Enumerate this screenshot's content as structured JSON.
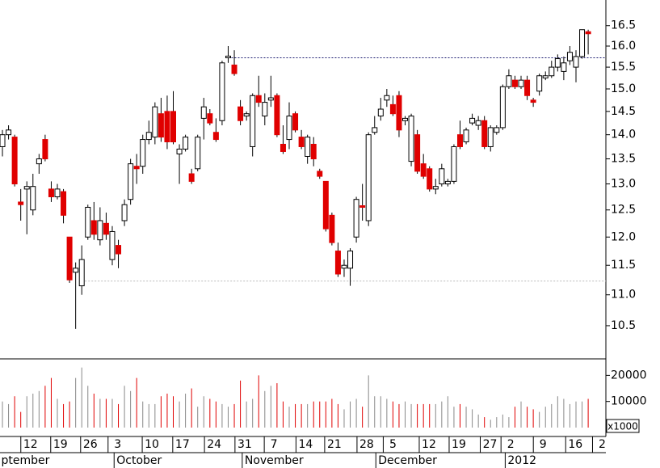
{
  "chart_data": {
    "type": "candlestick",
    "log_scale": true,
    "xlim": [
      -0.4,
      98.9
    ],
    "ylim": [
      10.0,
      17.15
    ],
    "yticks": [
      {
        "value": 10.5,
        "label": "10.5"
      },
      {
        "value": 11,
        "label": "11.0"
      },
      {
        "value": 11.5,
        "label": "11.5"
      },
      {
        "value": 12,
        "label": "12.0"
      },
      {
        "value": 12.5,
        "label": "12.5"
      },
      {
        "value": 13,
        "label": "13.0"
      },
      {
        "value": 13.5,
        "label": "13.5"
      },
      {
        "value": 14,
        "label": "14.0"
      },
      {
        "value": 14.5,
        "label": "14.5"
      },
      {
        "value": 15,
        "label": "15.0"
      },
      {
        "value": 15.5,
        "label": "15.5"
      },
      {
        "value": 16,
        "label": "16.0"
      },
      {
        "value": 16.5,
        "label": "16.5"
      }
    ],
    "up_color": "#ffffff",
    "down_color": "#e00000",
    "candles": [
      {
        "open": 13.75,
        "high": 14.1,
        "low": 13.55,
        "close": 14.0
      },
      {
        "open": 14.0,
        "high": 14.2,
        "low": 13.9,
        "close": 14.1
      },
      {
        "open": 13.95,
        "high": 14.0,
        "low": 12.95,
        "close": 13.0
      },
      {
        "open": 12.65,
        "high": 12.9,
        "low": 12.3,
        "close": 12.6
      },
      {
        "open": 12.9,
        "high": 13.05,
        "low": 12.05,
        "close": 12.95
      },
      {
        "open": 12.5,
        "high": 13.2,
        "low": 12.4,
        "close": 12.95
      },
      {
        "open": 13.4,
        "high": 13.6,
        "low": 13.2,
        "close": 13.5
      },
      {
        "open": 13.9,
        "high": 14.0,
        "low": 13.45,
        "close": 13.5
      },
      {
        "open": 12.9,
        "high": 13.05,
        "low": 12.65,
        "close": 12.75
      },
      {
        "open": 12.75,
        "high": 13.0,
        "low": 12.7,
        "close": 12.9
      },
      {
        "open": 12.85,
        "high": 12.9,
        "low": 12.25,
        "close": 12.4
      },
      {
        "open": 12.0,
        "high": 12.0,
        "low": 11.2,
        "close": 11.25
      },
      {
        "open": 11.38,
        "high": 11.55,
        "low": 10.45,
        "close": 11.45
      },
      {
        "open": 11.15,
        "high": 11.85,
        "low": 11.0,
        "close": 11.6
      },
      {
        "open": 12.0,
        "high": 12.6,
        "low": 11.95,
        "close": 12.55
      },
      {
        "open": 12.3,
        "high": 12.65,
        "low": 11.95,
        "close": 12.05
      },
      {
        "open": 11.95,
        "high": 12.55,
        "low": 11.85,
        "close": 12.3
      },
      {
        "open": 12.25,
        "high": 12.45,
        "low": 11.95,
        "close": 12.05
      },
      {
        "open": 11.6,
        "high": 12.2,
        "low": 11.5,
        "close": 12.1
      },
      {
        "open": 11.85,
        "high": 11.95,
        "low": 11.45,
        "close": 11.7
      },
      {
        "open": 12.3,
        "high": 12.7,
        "low": 12.2,
        "close": 12.6
      },
      {
        "open": 12.7,
        "high": 13.5,
        "low": 12.6,
        "close": 13.4
      },
      {
        "open": 13.35,
        "high": 13.6,
        "low": 13.0,
        "close": 13.3
      },
      {
        "open": 13.35,
        "high": 14.0,
        "low": 13.2,
        "close": 13.9
      },
      {
        "open": 13.9,
        "high": 14.3,
        "low": 13.8,
        "close": 14.05
      },
      {
        "open": 13.95,
        "high": 14.7,
        "low": 13.8,
        "close": 14.6
      },
      {
        "open": 14.45,
        "high": 14.8,
        "low": 13.85,
        "close": 13.95
      },
      {
        "open": 14.5,
        "high": 14.85,
        "low": 13.7,
        "close": 13.85
      },
      {
        "open": 14.5,
        "high": 14.95,
        "low": 13.8,
        "close": 13.85
      },
      {
        "open": 13.6,
        "high": 13.8,
        "low": 13.0,
        "close": 13.7
      },
      {
        "open": 13.7,
        "high": 14.0,
        "low": 13.65,
        "close": 13.95
      },
      {
        "open": 13.2,
        "high": 13.3,
        "low": 13.0,
        "close": 13.05
      },
      {
        "open": 13.3,
        "high": 14.0,
        "low": 13.25,
        "close": 13.95
      },
      {
        "open": 14.35,
        "high": 14.8,
        "low": 13.9,
        "close": 14.6
      },
      {
        "open": 14.45,
        "high": 14.55,
        "low": 14.2,
        "close": 14.25
      },
      {
        "open": 14.05,
        "high": 14.35,
        "low": 13.85,
        "close": 13.9
      },
      {
        "open": 14.3,
        "high": 15.65,
        "low": 14.2,
        "close": 15.6
      },
      {
        "open": 15.72,
        "high": 16.0,
        "low": 15.6,
        "close": 15.76
      },
      {
        "open": 15.55,
        "high": 15.9,
        "low": 15.3,
        "close": 15.35
      },
      {
        "open": 14.6,
        "high": 14.75,
        "low": 14.2,
        "close": 14.3
      },
      {
        "open": 14.4,
        "high": 14.5,
        "low": 14.3,
        "close": 14.45
      },
      {
        "open": 13.75,
        "high": 14.9,
        "low": 13.55,
        "close": 14.85
      },
      {
        "open": 14.85,
        "high": 15.3,
        "low": 14.6,
        "close": 14.7
      },
      {
        "open": 14.4,
        "high": 14.9,
        "low": 14.2,
        "close": 14.7
      },
      {
        "open": 14.75,
        "high": 15.3,
        "low": 14.6,
        "close": 14.8
      },
      {
        "open": 14.85,
        "high": 14.9,
        "low": 13.95,
        "close": 14.0
      },
      {
        "open": 13.8,
        "high": 14.2,
        "low": 13.6,
        "close": 13.65
      },
      {
        "open": 13.9,
        "high": 14.7,
        "low": 13.7,
        "close": 14.4
      },
      {
        "open": 14.45,
        "high": 14.5,
        "low": 14.05,
        "close": 14.1
      },
      {
        "open": 13.95,
        "high": 14.1,
        "low": 13.7,
        "close": 13.75
      },
      {
        "open": 13.55,
        "high": 14.0,
        "low": 13.4,
        "close": 13.95
      },
      {
        "open": 13.8,
        "high": 13.95,
        "low": 13.35,
        "close": 13.5
      },
      {
        "open": 13.25,
        "high": 13.3,
        "low": 13.1,
        "close": 13.15
      },
      {
        "open": 13.05,
        "high": 13.05,
        "low": 12.1,
        "close": 12.15
      },
      {
        "open": 12.4,
        "high": 12.45,
        "low": 11.85,
        "close": 11.9
      },
      {
        "open": 11.75,
        "high": 11.9,
        "low": 11.3,
        "close": 11.35
      },
      {
        "open": 11.45,
        "high": 11.6,
        "low": 11.3,
        "close": 11.5
      },
      {
        "open": 11.45,
        "high": 11.8,
        "low": 11.15,
        "close": 11.75
      },
      {
        "open": 12.0,
        "high": 12.75,
        "low": 11.9,
        "close": 12.7
      },
      {
        "open": 12.58,
        "high": 13.0,
        "low": 12.3,
        "close": 12.55
      },
      {
        "open": 12.3,
        "high": 14.05,
        "low": 12.2,
        "close": 14.0
      },
      {
        "open": 14.05,
        "high": 14.4,
        "low": 14.0,
        "close": 14.15
      },
      {
        "open": 14.4,
        "high": 14.8,
        "low": 14.3,
        "close": 14.55
      },
      {
        "open": 14.75,
        "high": 15.0,
        "low": 14.6,
        "close": 14.85
      },
      {
        "open": 14.65,
        "high": 14.85,
        "low": 14.4,
        "close": 14.45
      },
      {
        "open": 14.85,
        "high": 14.95,
        "low": 13.95,
        "close": 14.1
      },
      {
        "open": 14.3,
        "high": 14.4,
        "low": 14.2,
        "close": 14.35
      },
      {
        "open": 13.45,
        "high": 14.45,
        "low": 13.35,
        "close": 14.4
      },
      {
        "open": 14.0,
        "high": 14.1,
        "low": 13.2,
        "close": 13.25
      },
      {
        "open": 13.4,
        "high": 13.6,
        "low": 13.1,
        "close": 13.15
      },
      {
        "open": 13.3,
        "high": 13.35,
        "low": 12.85,
        "close": 12.9
      },
      {
        "open": 12.9,
        "high": 13.1,
        "low": 12.8,
        "close": 12.95
      },
      {
        "open": 13.0,
        "high": 13.4,
        "low": 12.95,
        "close": 13.3
      },
      {
        "open": 13.0,
        "high": 13.1,
        "low": 12.95,
        "close": 13.05
      },
      {
        "open": 13.05,
        "high": 13.8,
        "low": 13.0,
        "close": 13.75
      },
      {
        "open": 14.0,
        "high": 14.3,
        "low": 13.7,
        "close": 13.75
      },
      {
        "open": 13.85,
        "high": 14.15,
        "low": 13.8,
        "close": 14.1
      },
      {
        "open": 14.25,
        "high": 14.45,
        "low": 14.2,
        "close": 14.35
      },
      {
        "open": 14.2,
        "high": 14.4,
        "low": 14.1,
        "close": 14.3
      },
      {
        "open": 14.3,
        "high": 14.4,
        "low": 13.7,
        "close": 13.75
      },
      {
        "open": 13.75,
        "high": 14.2,
        "low": 13.65,
        "close": 14.15
      },
      {
        "open": 14.05,
        "high": 14.2,
        "low": 14.0,
        "close": 14.15
      },
      {
        "open": 14.15,
        "high": 15.1,
        "low": 14.1,
        "close": 15.05
      },
      {
        "open": 15.05,
        "high": 15.45,
        "low": 15.0,
        "close": 15.3
      },
      {
        "open": 15.2,
        "high": 15.3,
        "low": 15.0,
        "close": 15.05
      },
      {
        "open": 15.05,
        "high": 15.3,
        "low": 15.0,
        "close": 15.2
      },
      {
        "open": 15.2,
        "high": 15.3,
        "low": 14.75,
        "close": 14.85
      },
      {
        "open": 14.75,
        "high": 14.8,
        "low": 14.6,
        "close": 14.7
      },
      {
        "open": 14.95,
        "high": 15.35,
        "low": 14.85,
        "close": 15.3
      },
      {
        "open": 15.25,
        "high": 15.4,
        "low": 15.2,
        "close": 15.3
      },
      {
        "open": 15.3,
        "high": 15.65,
        "low": 15.25,
        "close": 15.5
      },
      {
        "open": 15.5,
        "high": 15.8,
        "low": 15.4,
        "close": 15.7
      },
      {
        "open": 15.4,
        "high": 15.75,
        "low": 15.2,
        "close": 15.6
      },
      {
        "open": 15.65,
        "high": 16.0,
        "low": 15.55,
        "close": 15.85
      },
      {
        "open": 15.5,
        "high": 15.9,
        "low": 15.15,
        "close": 15.75
      },
      {
        "open": 15.75,
        "high": 16.4,
        "low": 15.7,
        "close": 16.4
      },
      {
        "open": 16.35,
        "high": 16.4,
        "low": 15.8,
        "close": 16.3
      }
    ],
    "reference_lines": [
      {
        "value": 15.72,
        "from": 37,
        "color": "#1a1a6e"
      },
      {
        "value": 11.23,
        "from": 13,
        "color": "#bbbbbb"
      }
    ],
    "volume": {
      "ylim": [
        0,
        26000
      ],
      "yticks": [
        10000,
        20000
      ],
      "unit_label": "x1000",
      "up_color": "#888888",
      "values": [
        10000,
        9000,
        12000,
        6000,
        12000,
        13000,
        14000,
        16000,
        19000,
        11000,
        9000,
        10000,
        19000,
        23000,
        16000,
        13000,
        11000,
        11000,
        11000,
        9000,
        16000,
        14000,
        19000,
        10000,
        9000,
        9000,
        12000,
        13000,
        12000,
        10000,
        13000,
        15000,
        8000,
        12000,
        11000,
        10000,
        9000,
        8000,
        9000,
        18000,
        10000,
        11000,
        20000,
        14000,
        16000,
        17000,
        10000,
        8000,
        9000,
        9000,
        9000,
        10000,
        10000,
        10000,
        11000,
        9000,
        7000,
        10000,
        11000,
        8000,
        20000,
        12000,
        12000,
        11000,
        10000,
        9000,
        10000,
        9000,
        9000,
        9000,
        9000,
        9000,
        10000,
        12000,
        8000,
        9000,
        8000,
        7000,
        5000,
        4000,
        3000,
        4000,
        5000,
        4000,
        8000,
        10000,
        8000,
        7000,
        6000,
        8000,
        9000,
        12000,
        11000,
        9000,
        10000,
        10000,
        11000
      ]
    },
    "xticks": [
      {
        "value": 4.6,
        "label": "12"
      },
      {
        "value": 9.5,
        "label": "19"
      },
      {
        "value": 14.4,
        "label": "26"
      },
      {
        "value": 18.9,
        "label": "3"
      },
      {
        "value": 24.5,
        "label": "10"
      },
      {
        "value": 29.5,
        "label": "17"
      },
      {
        "value": 34.7,
        "label": "24"
      },
      {
        "value": 39.7,
        "label": "31"
      },
      {
        "value": 44.5,
        "label": "7"
      },
      {
        "value": 49.7,
        "label": "14"
      },
      {
        "value": 54.4,
        "label": "21"
      },
      {
        "value": 59.7,
        "label": "28"
      },
      {
        "value": 64.0,
        "label": "5"
      },
      {
        "value": 69.9,
        "label": "12"
      },
      {
        "value": 74.8,
        "label": "19"
      },
      {
        "value": 79.9,
        "label": "27"
      },
      {
        "value": 83.3,
        "label": "2"
      },
      {
        "value": 88.6,
        "label": "9"
      },
      {
        "value": 93.9,
        "label": "16"
      },
      {
        "value": 98.3,
        "label": "2"
      }
    ],
    "months": [
      {
        "value": -0.6,
        "label": "ptember"
      },
      {
        "value": 18.3,
        "label": "October"
      },
      {
        "value": 39.3,
        "label": "November"
      },
      {
        "value": 61.2,
        "label": "December"
      },
      {
        "value": 82.4,
        "label": "2012"
      }
    ]
  }
}
